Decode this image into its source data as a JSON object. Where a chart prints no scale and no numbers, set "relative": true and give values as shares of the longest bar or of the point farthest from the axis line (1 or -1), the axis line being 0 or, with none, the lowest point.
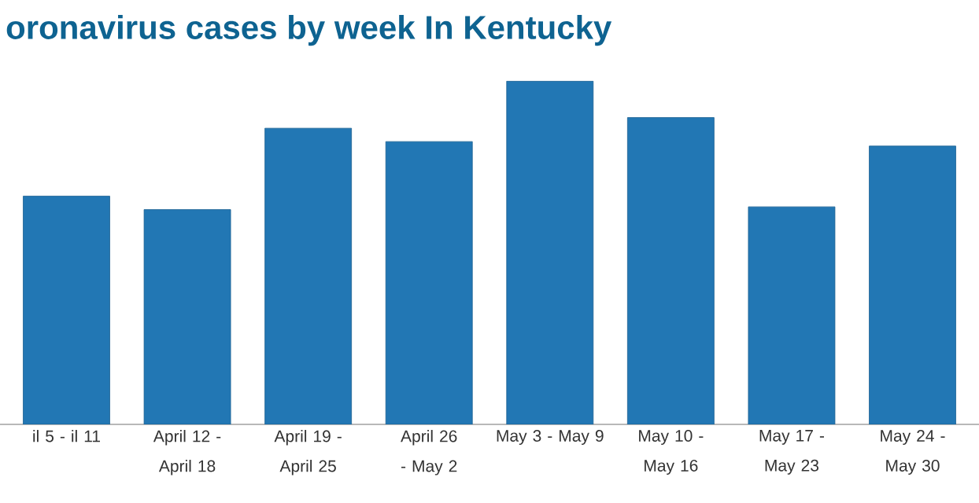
{
  "chart_data": {
    "type": "bar",
    "title": "oronavirus cases by week In Kentucky",
    "relative": true,
    "color": "#2277b4",
    "categories": [
      "il 5 - il 11",
      "April 12 - April 18",
      "April 19 - April 25",
      "April 26 - May 2",
      "May 3 - May 9",
      "May 10 - May 16",
      "May 17 - May 23",
      "May 24 - May 30"
    ],
    "values": [
      0.665,
      0.626,
      0.863,
      0.824,
      1,
      0.894,
      0.634,
      0.811
    ]
  }
}
